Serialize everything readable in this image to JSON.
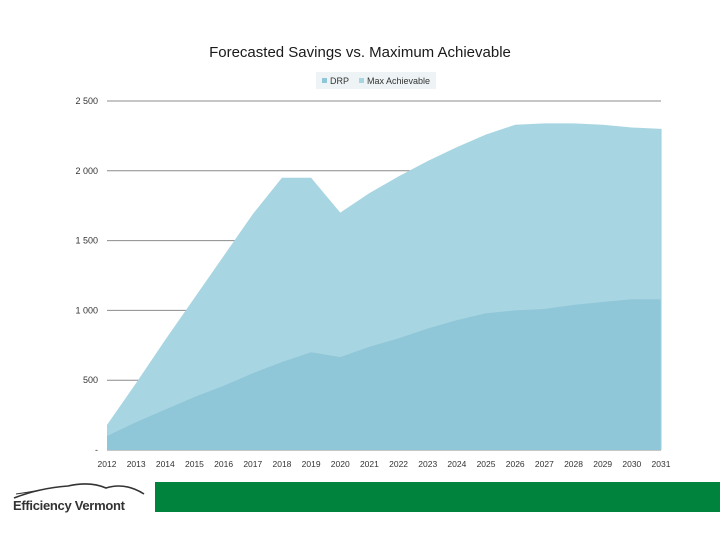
{
  "colors": {
    "max_area": "#a8d5e2",
    "drp_area": "#8fc7d8",
    "grid": "#8c8c8c",
    "footer_band": "#00843d",
    "logo_text": "#333333"
  },
  "logo": {
    "text": "Efficiency Vermont",
    "icon": "mountain-logo-icon"
  },
  "chart_data": {
    "type": "area",
    "title": "Forecasted Savings vs. Maximum Achievable",
    "xlabel": "",
    "ylabel": "",
    "grid": true,
    "legend_placement": "top-center",
    "x": [
      "2012",
      "2013",
      "2014",
      "2015",
      "2016",
      "2017",
      "2018",
      "2019",
      "2020",
      "2021",
      "2022",
      "2023",
      "2024",
      "2025",
      "2026",
      "2027",
      "2028",
      "2029",
      "2030",
      "2031"
    ],
    "ylim": [
      0,
      2500
    ],
    "yticks": [
      0,
      500,
      1000,
      1500,
      2000,
      2500
    ],
    "ytick_labels": [
      "-",
      "500",
      "1 000",
      "1 500",
      "2 000",
      "2 500"
    ],
    "series": [
      {
        "name": "Max Achievable",
        "values": [
          180,
          480,
          790,
          1090,
          1390,
          1690,
          1950,
          1950,
          1700,
          1840,
          1960,
          2070,
          2170,
          2260,
          2330,
          2340,
          2340,
          2330,
          2310,
          2300
        ]
      },
      {
        "name": "DRP",
        "values": [
          100,
          200,
          290,
          380,
          460,
          550,
          630,
          700,
          665,
          740,
          800,
          870,
          930,
          980,
          1000,
          1010,
          1040,
          1060,
          1080,
          1080
        ]
      }
    ]
  }
}
